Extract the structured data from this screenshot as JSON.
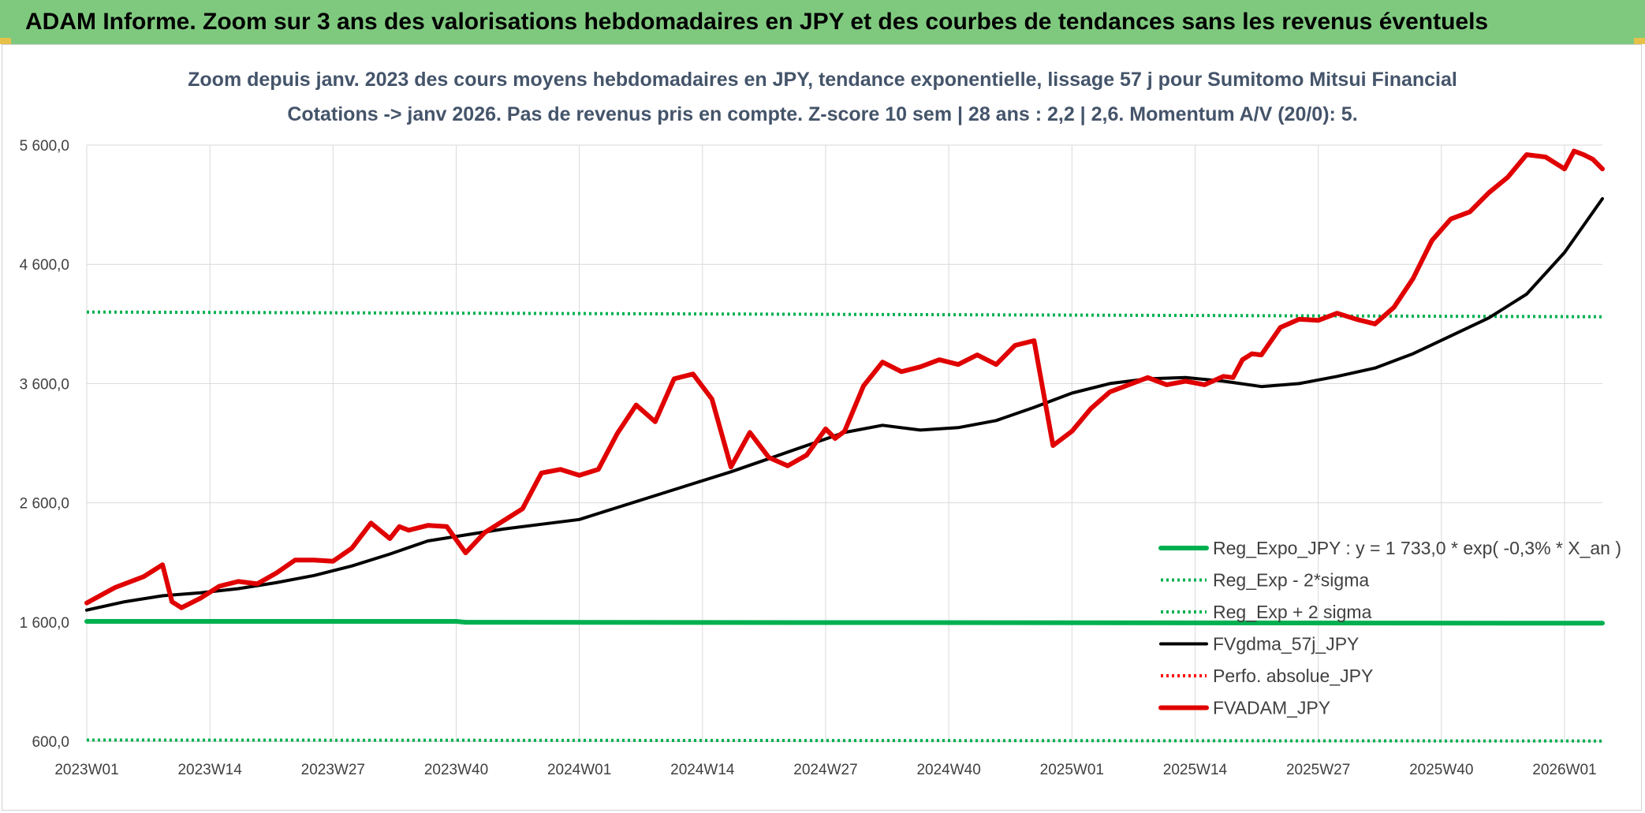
{
  "header": {
    "title": "ADAM Informe. Zoom sur 3 ans des valorisations hebdomadaires en JPY et des courbes de tendances sans les revenus éventuels"
  },
  "chart_data": {
    "type": "line",
    "title": "Zoom depuis janv. 2023 des cours moyens hebdomadaires en JPY, tendance exponentielle, lissage 57 j pour Sumitomo Mitsui Financial",
    "subtitle": "Cotations -> janv 2026. Pas de revenus pris en compte. Z-score 10 sem | 28 ans : 2,2 | 2,6. Momentum A/V (20/0): 5.",
    "xlabel": "",
    "ylabel": "",
    "ylim": [
      600,
      5600
    ],
    "y_ticks": [
      "600,0",
      "1 600,0",
      "2 600,0",
      "3 600,0",
      "4 600,0",
      "5 600,0"
    ],
    "x_ticks": [
      "2023W01",
      "2023W14",
      "2023W27",
      "2023W40",
      "2024W01",
      "2024W14",
      "2024W27",
      "2024W40",
      "2025W01",
      "2025W14",
      "2025W27",
      "2025W40",
      "2026W01"
    ],
    "grid": true,
    "legend_position": "bottom-right",
    "series": [
      {
        "name": "Reg_Expo_JPY : y = 1 733,0 * exp( -0,3% *  X_an )",
        "color": "#00b050",
        "style": "solid-thick",
        "x": [
          0,
          39,
          40,
          160
        ],
        "y": [
          1605,
          1605,
          1598,
          1590
        ]
      },
      {
        "name": "Reg_Exp - 2*sigma",
        "color": "#00b050",
        "style": "dotted",
        "x": [
          0,
          160
        ],
        "y": [
          610,
          602
        ]
      },
      {
        "name": "Reg_Exp + 2 sigma",
        "color": "#00b050",
        "style": "dotted",
        "x": [
          0,
          160
        ],
        "y": [
          4200,
          4160
        ]
      },
      {
        "name": "FVgdma_57j_JPY",
        "color": "#000000",
        "style": "solid",
        "x": [
          0,
          4,
          8,
          12,
          16,
          20,
          24,
          28,
          32,
          36,
          40,
          44,
          48,
          52,
          56,
          60,
          64,
          68,
          72,
          76,
          80,
          84,
          88,
          92,
          96,
          100,
          104,
          108,
          112,
          116,
          120,
          124,
          128,
          132,
          136,
          140,
          144,
          148,
          152,
          156,
          160
        ],
        "y": [
          1700,
          1770,
          1820,
          1845,
          1880,
          1930,
          1990,
          2070,
          2170,
          2280,
          2330,
          2380,
          2420,
          2460,
          2560,
          2660,
          2760,
          2860,
          2970,
          3080,
          3190,
          3250,
          3210,
          3230,
          3290,
          3400,
          3520,
          3600,
          3640,
          3650,
          3620,
          3575,
          3600,
          3660,
          3730,
          3850,
          4000,
          4150,
          4350,
          4700,
          5150
        ]
      },
      {
        "name": "Perfo. absolue_JPY",
        "color": "#ff0000",
        "style": "dotted",
        "x": [],
        "y": []
      },
      {
        "name": "FVADAM_JPY",
        "color": "#e00000",
        "style": "solid-thick",
        "x": [
          0,
          3,
          6,
          8,
          9,
          10,
          12,
          14,
          16,
          18,
          20,
          22,
          24,
          26,
          28,
          30,
          32,
          33,
          34,
          36,
          38,
          40,
          42,
          44,
          46,
          48,
          50,
          52,
          54,
          56,
          58,
          60,
          62,
          64,
          66,
          68,
          70,
          72,
          74,
          76,
          78,
          79,
          80,
          82,
          84,
          86,
          88,
          90,
          92,
          94,
          96,
          98,
          100,
          102,
          104,
          106,
          108,
          110,
          112,
          114,
          116,
          118,
          120,
          121,
          122,
          123,
          124,
          126,
          128,
          130,
          132,
          134,
          136,
          138,
          140,
          142,
          144,
          146,
          148,
          150,
          152,
          154,
          156,
          157,
          158,
          159,
          160
        ],
        "y": [
          1760,
          1890,
          1980,
          2080,
          1770,
          1720,
          1800,
          1900,
          1940,
          1920,
          2010,
          2120,
          2120,
          2110,
          2220,
          2430,
          2300,
          2400,
          2370,
          2410,
          2400,
          2180,
          2350,
          2450,
          2550,
          2850,
          2880,
          2830,
          2880,
          3180,
          3420,
          3280,
          3640,
          3680,
          3470,
          2900,
          3190,
          2980,
          2910,
          3000,
          3220,
          3140,
          3200,
          3580,
          3780,
          3700,
          3740,
          3800,
          3760,
          3840,
          3760,
          3920,
          3960,
          3080,
          3200,
          3390,
          3530,
          3590,
          3650,
          3590,
          3620,
          3590,
          3660,
          3650,
          3800,
          3850,
          3840,
          4070,
          4140,
          4130,
          4190,
          4140,
          4100,
          4240,
          4480,
          4800,
          4980,
          5040,
          5200,
          5330,
          5520,
          5500,
          5400,
          5550,
          5520,
          5480,
          5400
        ]
      }
    ]
  }
}
